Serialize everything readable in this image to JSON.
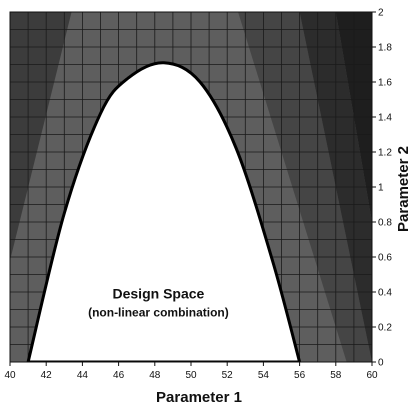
{
  "chart_data": {
    "type": "area",
    "xlabel": "Parameter 1",
    "ylabel": "Parameter 2",
    "xlim": [
      40,
      60
    ],
    "ylim": [
      0,
      2
    ],
    "x_ticks": [
      "40",
      "42",
      "44",
      "46",
      "48",
      "50",
      "52",
      "54",
      "56",
      "58",
      "60"
    ],
    "y_ticks": [
      "0",
      "0.2",
      "0.4",
      "0.6",
      "0.8",
      "1",
      "1.2",
      "1.4",
      "1.6",
      "1.8",
      "2"
    ],
    "grid": true,
    "regions": [
      {
        "shade": "#3c3c3c",
        "polygon": [
          [
            40,
            2
          ],
          [
            43.4,
            2
          ],
          [
            40,
            0.58
          ]
        ]
      },
      {
        "shade": "#454545",
        "polygon": [
          [
            52.6,
            2
          ],
          [
            56,
            2
          ],
          [
            60,
            0
          ],
          [
            58.6,
            0
          ]
        ]
      },
      {
        "shade": "#2c2c2c",
        "polygon": [
          [
            56,
            2
          ],
          [
            58,
            2
          ],
          [
            60,
            0.8
          ],
          [
            60,
            0
          ]
        ]
      },
      {
        "shade": "#1e1e1e",
        "polygon": [
          [
            58,
            2
          ],
          [
            60,
            2
          ],
          [
            60,
            0.8
          ]
        ]
      }
    ],
    "background_shade": "#5e5e5e",
    "grid_color": "#1a1a1a",
    "design_space": {
      "fill": "#ffffff",
      "outline": [
        [
          41,
          0
        ],
        [
          43,
          0.85
        ],
        [
          45,
          1.42
        ],
        [
          46.5,
          1.62
        ],
        [
          48.5,
          1.71
        ],
        [
          50.5,
          1.6
        ],
        [
          52.5,
          1.22
        ],
        [
          54.5,
          0.58
        ],
        [
          56,
          0
        ]
      ]
    },
    "annotation": {
      "title": "Design Space",
      "subtitle": "(non-linear combination)",
      "x": 48.2,
      "y": 0.34
    }
  }
}
